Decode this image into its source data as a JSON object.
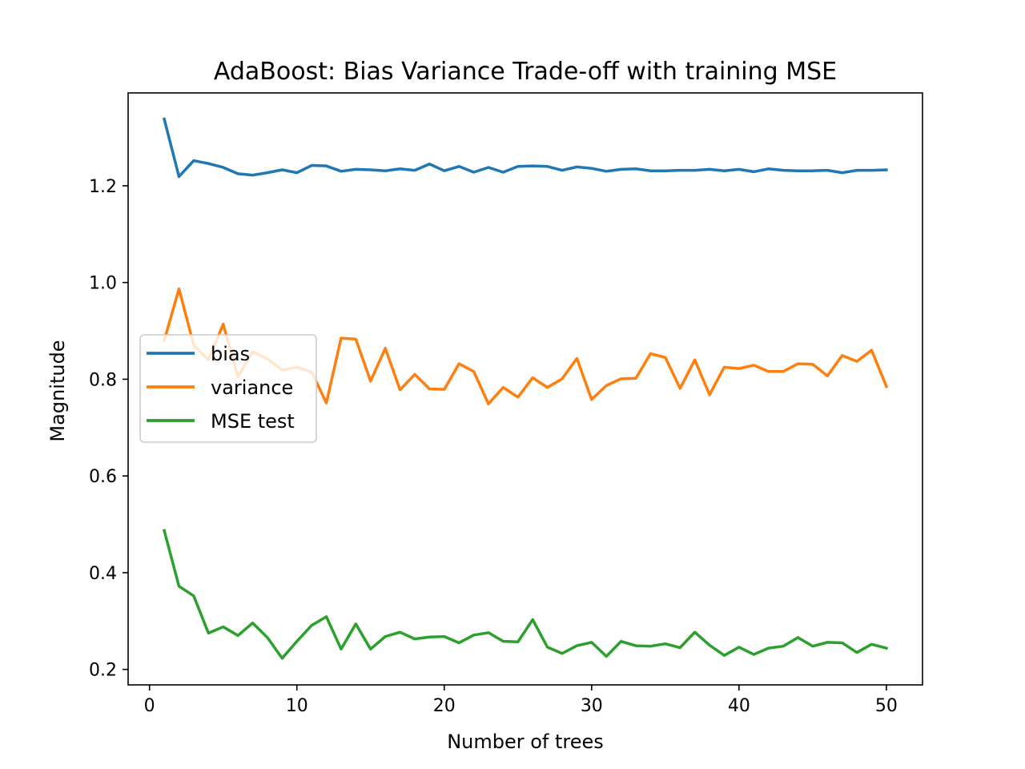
{
  "chart_data": {
    "type": "line",
    "title": "AdaBoost: Bias Variance Trade-off with training MSE",
    "xlabel": "Number of trees",
    "ylabel": "Magnitude",
    "xlim": [
      -1.45,
      52.45
    ],
    "ylim": [
      0.168,
      1.392
    ],
    "xticks": [
      0,
      10,
      20,
      30,
      40,
      50
    ],
    "yticks": [
      0.2,
      0.4,
      0.6,
      0.8,
      1.0,
      1.2
    ],
    "xtick_labels": [
      "0",
      "10",
      "20",
      "30",
      "40",
      "50"
    ],
    "ytick_labels": [
      "0.2",
      "0.4",
      "0.6",
      "0.8",
      "1.0",
      "1.2"
    ],
    "grid": false,
    "legend_position": "center-left",
    "x": [
      1,
      2,
      3,
      4,
      5,
      6,
      7,
      8,
      9,
      10,
      11,
      12,
      13,
      14,
      15,
      16,
      17,
      18,
      19,
      20,
      21,
      22,
      23,
      24,
      25,
      26,
      27,
      28,
      29,
      30,
      31,
      32,
      33,
      34,
      35,
      36,
      37,
      38,
      39,
      40,
      41,
      42,
      43,
      44,
      45,
      46,
      47,
      48,
      49,
      50
    ],
    "series": [
      {
        "name": "bias",
        "color": "#1f77b4",
        "values": [
          1.338,
          1.219,
          1.252,
          1.246,
          1.238,
          1.225,
          1.222,
          1.227,
          1.233,
          1.227,
          1.242,
          1.241,
          1.23,
          1.234,
          1.233,
          1.231,
          1.235,
          1.232,
          1.245,
          1.231,
          1.24,
          1.228,
          1.238,
          1.228,
          1.24,
          1.241,
          1.24,
          1.232,
          1.239,
          1.236,
          1.23,
          1.234,
          1.235,
          1.231,
          1.231,
          1.232,
          1.232,
          1.234,
          1.231,
          1.234,
          1.229,
          1.235,
          1.232,
          1.231,
          1.231,
          1.232,
          1.227,
          1.232,
          1.232,
          1.233
        ]
      },
      {
        "name": "variance",
        "color": "#ff7f0e",
        "values": [
          0.88,
          0.987,
          0.871,
          0.84,
          0.914,
          0.805,
          0.857,
          0.842,
          0.819,
          0.825,
          0.815,
          0.751,
          0.885,
          0.883,
          0.796,
          0.864,
          0.778,
          0.81,
          0.78,
          0.779,
          0.832,
          0.816,
          0.749,
          0.783,
          0.763,
          0.803,
          0.783,
          0.801,
          0.843,
          0.758,
          0.787,
          0.801,
          0.802,
          0.853,
          0.845,
          0.781,
          0.84,
          0.768,
          0.825,
          0.822,
          0.829,
          0.816,
          0.816,
          0.832,
          0.831,
          0.807,
          0.849,
          0.837,
          0.86,
          0.785
        ]
      },
      {
        "name": "MSE test",
        "color": "#2ca02c",
        "values": [
          0.487,
          0.372,
          0.352,
          0.275,
          0.288,
          0.27,
          0.296,
          0.266,
          0.223,
          0.258,
          0.291,
          0.309,
          0.242,
          0.294,
          0.242,
          0.268,
          0.277,
          0.263,
          0.267,
          0.268,
          0.255,
          0.271,
          0.276,
          0.258,
          0.257,
          0.303,
          0.246,
          0.233,
          0.249,
          0.256,
          0.227,
          0.258,
          0.249,
          0.248,
          0.253,
          0.245,
          0.277,
          0.25,
          0.229,
          0.246,
          0.231,
          0.244,
          0.248,
          0.266,
          0.248,
          0.256,
          0.255,
          0.235,
          0.252,
          0.244
        ]
      }
    ]
  }
}
